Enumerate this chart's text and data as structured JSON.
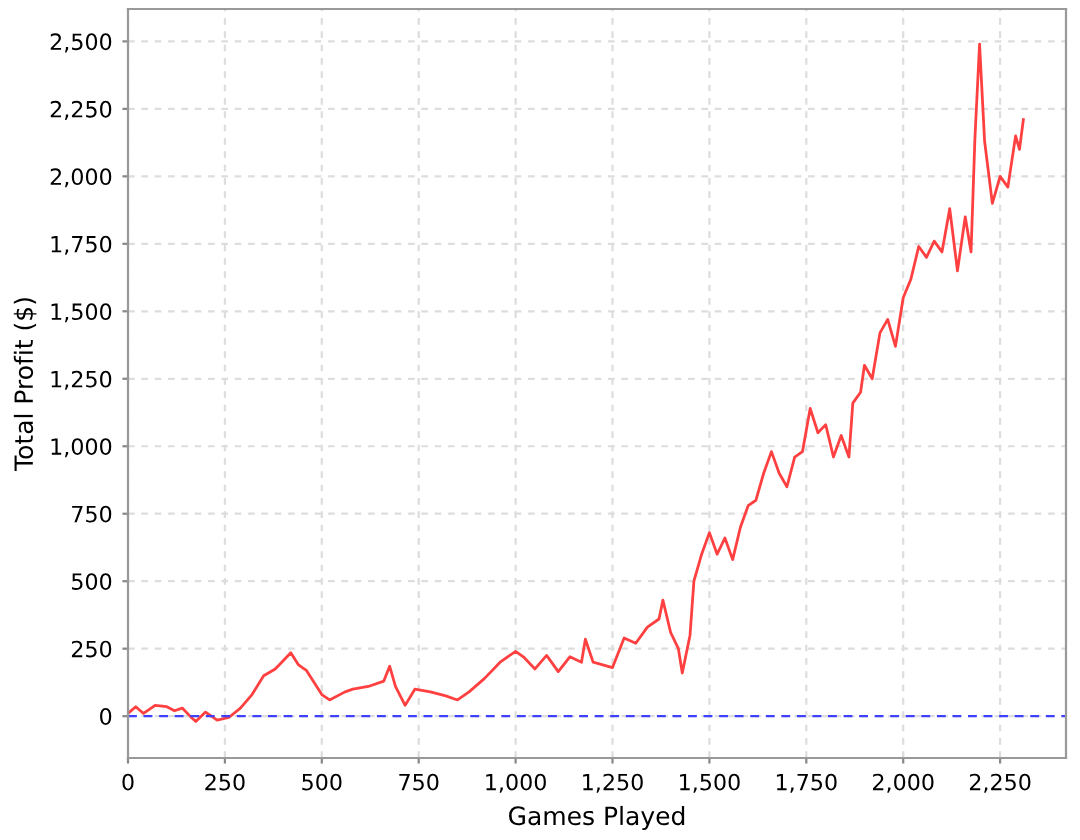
{
  "chart_data": {
    "type": "line",
    "xlabel": "Games Played",
    "ylabel": "Total Profit ($)",
    "x": [
      0,
      20,
      40,
      70,
      100,
      120,
      140,
      160,
      175,
      200,
      230,
      260,
      290,
      320,
      350,
      380,
      420,
      440,
      460,
      500,
      520,
      560,
      580,
      620,
      660,
      675,
      690,
      715,
      740,
      780,
      820,
      850,
      880,
      920,
      960,
      1000,
      1020,
      1050,
      1080,
      1110,
      1140,
      1170,
      1180,
      1200,
      1250,
      1280,
      1310,
      1340,
      1370,
      1380,
      1400,
      1420,
      1430,
      1450,
      1460,
      1480,
      1500,
      1520,
      1540,
      1560,
      1580,
      1600,
      1620,
      1640,
      1660,
      1680,
      1700,
      1720,
      1740,
      1760,
      1780,
      1800,
      1820,
      1840,
      1860,
      1870,
      1890,
      1900,
      1920,
      1940,
      1960,
      1980,
      2000,
      2020,
      2040,
      2060,
      2080,
      2100,
      2120,
      2140,
      2160,
      2175,
      2185,
      2197,
      2210,
      2230,
      2250,
      2270,
      2290,
      2300,
      2310
    ],
    "series": [
      {
        "color": "#ff4040",
        "values": [
          10,
          35,
          10,
          40,
          35,
          20,
          30,
          0,
          -20,
          15,
          -15,
          -5,
          30,
          80,
          150,
          175,
          235,
          190,
          170,
          80,
          60,
          90,
          100,
          110,
          130,
          185,
          110,
          40,
          100,
          90,
          75,
          60,
          90,
          140,
          200,
          240,
          220,
          175,
          225,
          165,
          220,
          200,
          285,
          200,
          180,
          290,
          270,
          330,
          360,
          430,
          310,
          250,
          160,
          300,
          500,
          600,
          680,
          600,
          660,
          580,
          700,
          780,
          800,
          900,
          980,
          900,
          850,
          960,
          980,
          1140,
          1050,
          1080,
          960,
          1040,
          960,
          1160,
          1200,
          1300,
          1250,
          1420,
          1470,
          1370,
          1550,
          1620,
          1740,
          1700,
          1760,
          1720,
          1880,
          1650,
          1850,
          1720,
          2140,
          2490,
          2130,
          1900,
          2000,
          1960,
          2150,
          2100,
          2210
        ]
      }
    ],
    "xlim": [
      0,
      2420
    ],
    "xticks": [
      {
        "value": 0,
        "label": "0"
      },
      {
        "value": 250,
        "label": "250"
      },
      {
        "value": 500,
        "label": "500"
      },
      {
        "value": 750,
        "label": "750"
      },
      {
        "value": 1000,
        "label": "1,000"
      },
      {
        "value": 1250,
        "label": "1,250"
      },
      {
        "value": 1500,
        "label": "1,500"
      },
      {
        "value": 1750,
        "label": "1,750"
      },
      {
        "value": 2000,
        "label": "2,000"
      },
      {
        "value": 2250,
        "label": "2,250"
      }
    ],
    "ylim": [
      -155,
      2620
    ],
    "yticks": [
      {
        "value": 0,
        "label": "0"
      },
      {
        "value": 250,
        "label": "250"
      },
      {
        "value": 500,
        "label": "500"
      },
      {
        "value": 750,
        "label": "750"
      },
      {
        "value": 1000,
        "label": "1,000"
      },
      {
        "value": 1250,
        "label": "1,250"
      },
      {
        "value": 1500,
        "label": "1,500"
      },
      {
        "value": 1750,
        "label": "1,750"
      },
      {
        "value": 2000,
        "label": "2,000"
      },
      {
        "value": 2250,
        "label": "2,250"
      },
      {
        "value": 2500,
        "label": "2,500"
      }
    ],
    "grid": true,
    "line_style": "solid",
    "ref_lines": [
      {
        "axis": "y",
        "value": 0,
        "color": "#4040ff",
        "line_style": "dashed"
      }
    ]
  }
}
